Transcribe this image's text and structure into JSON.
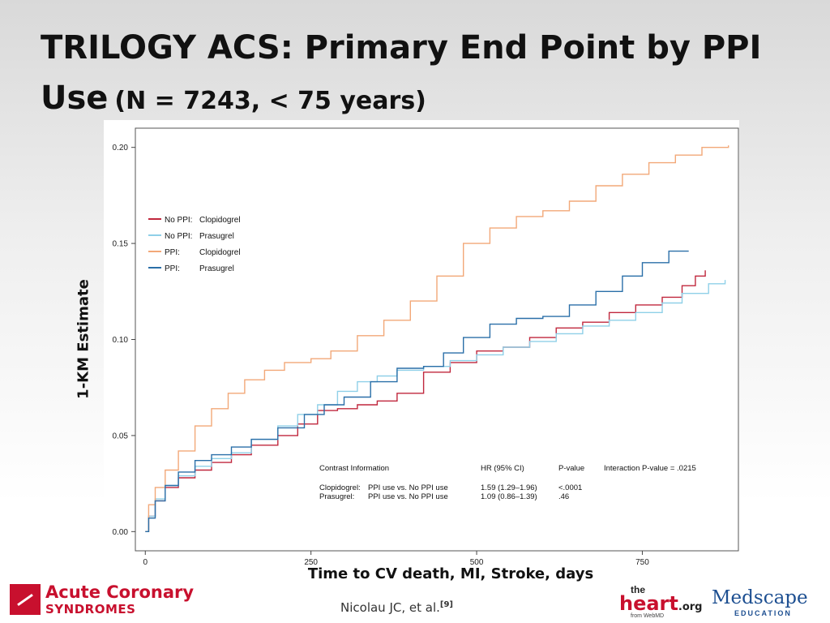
{
  "slide": {
    "title_line1": "TRILOGY ACS: Primary End Point by PPI",
    "title_line2": "Use",
    "title_sub": "(N = 7243, < 75 years)",
    "citation": "Nicolau JC, et al.",
    "citation_ref": "[9]"
  },
  "logos": {
    "acs_line1": "Acute Coronary",
    "acs_line2": "SYNDROMES",
    "heart_the": "the",
    "heart_main": "heart",
    "heart_org": ".org",
    "heart_from": "from WebMD",
    "medscape_main": "Medscape",
    "medscape_sub": "EDUCATION"
  },
  "colors": {
    "no_ppi_clopidogrel": "#c0273d",
    "no_ppi_prasugrel": "#8fd0e8",
    "ppi_clopidogrel": "#f2a878",
    "ppi_prasugrel": "#2a6fa8"
  },
  "chart_data": {
    "type": "line",
    "xlabel": "Time to CV death, MI, Stroke, days",
    "ylabel": "1-KM Estimate",
    "xlim": [
      -15,
      895
    ],
    "ylim": [
      -0.01,
      0.21
    ],
    "xticks": [
      0,
      250,
      500,
      750
    ],
    "yticks": [
      0.0,
      0.05,
      0.1,
      0.15,
      0.2
    ],
    "ytick_labels": [
      "0.00",
      "0.05",
      "0.10",
      "0.15",
      "0.20"
    ],
    "grid": false,
    "legend_position": "upper-left",
    "series": [
      {
        "name": "No PPI: Clopidogrel",
        "legend_group": "No PPI:",
        "legend_drug": "Clopidogrel",
        "color_key": "no_ppi_clopidogrel",
        "x": [
          0,
          5,
          15,
          30,
          50,
          75,
          100,
          130,
          160,
          200,
          230,
          260,
          290,
          320,
          350,
          380,
          420,
          460,
          500,
          540,
          580,
          620,
          660,
          700,
          740,
          780,
          810,
          830,
          845
        ],
        "y": [
          0.0,
          0.008,
          0.016,
          0.023,
          0.028,
          0.032,
          0.036,
          0.04,
          0.045,
          0.05,
          0.056,
          0.063,
          0.064,
          0.066,
          0.068,
          0.072,
          0.083,
          0.088,
          0.094,
          0.096,
          0.101,
          0.106,
          0.109,
          0.114,
          0.118,
          0.122,
          0.128,
          0.133,
          0.136
        ]
      },
      {
        "name": "No PPI: Prasugrel",
        "legend_group": "No PPI:",
        "legend_drug": "Prasugrel",
        "color_key": "no_ppi_prasugrel",
        "x": [
          0,
          5,
          15,
          30,
          50,
          75,
          100,
          130,
          160,
          200,
          230,
          260,
          290,
          320,
          350,
          380,
          420,
          460,
          500,
          540,
          580,
          620,
          660,
          700,
          740,
          780,
          810,
          850,
          875
        ],
        "y": [
          0.0,
          0.008,
          0.017,
          0.024,
          0.029,
          0.034,
          0.038,
          0.041,
          0.048,
          0.055,
          0.061,
          0.066,
          0.073,
          0.078,
          0.081,
          0.084,
          0.086,
          0.089,
          0.092,
          0.096,
          0.099,
          0.103,
          0.107,
          0.11,
          0.114,
          0.119,
          0.124,
          0.129,
          0.131
        ]
      },
      {
        "name": "PPI: Clopidogrel",
        "legend_group": "PPI:",
        "legend_drug": "Clopidogrel",
        "color_key": "ppi_clopidogrel",
        "x": [
          0,
          5,
          15,
          30,
          50,
          75,
          100,
          125,
          150,
          180,
          210,
          250,
          280,
          320,
          360,
          400,
          440,
          480,
          520,
          560,
          600,
          640,
          680,
          720,
          760,
          800,
          840,
          880
        ],
        "y": [
          0.0,
          0.014,
          0.023,
          0.032,
          0.042,
          0.055,
          0.064,
          0.072,
          0.079,
          0.084,
          0.088,
          0.09,
          0.094,
          0.102,
          0.11,
          0.12,
          0.133,
          0.15,
          0.158,
          0.164,
          0.167,
          0.172,
          0.18,
          0.186,
          0.192,
          0.196,
          0.2,
          0.201
        ]
      },
      {
        "name": "PPI: Prasugrel",
        "legend_group": "PPI:",
        "legend_drug": "Prasugrel",
        "color_key": "ppi_prasugrel",
        "x": [
          0,
          5,
          15,
          30,
          50,
          75,
          100,
          130,
          160,
          200,
          240,
          270,
          300,
          340,
          380,
          420,
          450,
          480,
          520,
          560,
          600,
          640,
          680,
          720,
          750,
          790,
          820
        ],
        "y": [
          0.0,
          0.007,
          0.016,
          0.024,
          0.031,
          0.037,
          0.04,
          0.044,
          0.048,
          0.054,
          0.061,
          0.066,
          0.07,
          0.078,
          0.085,
          0.086,
          0.093,
          0.101,
          0.108,
          0.111,
          0.112,
          0.118,
          0.125,
          0.133,
          0.14,
          0.146,
          0.146
        ]
      }
    ],
    "annotation": {
      "headers": {
        "contrast": "Contrast Information",
        "hr": "HR (95% CI)",
        "p": "P-value",
        "interaction": "Interaction P-value = .0215"
      },
      "rows": [
        {
          "label": "Clopidogrel:",
          "contrast": "PPI use vs. No PPI use",
          "hr": "1.59 (1.29–1.96)",
          "p": "<.0001"
        },
        {
          "label": "Prasugrel:",
          "contrast": "PPI use vs. No PPI use",
          "hr": "1.09 (0.86–1.39)",
          "p": ".46"
        }
      ]
    }
  }
}
